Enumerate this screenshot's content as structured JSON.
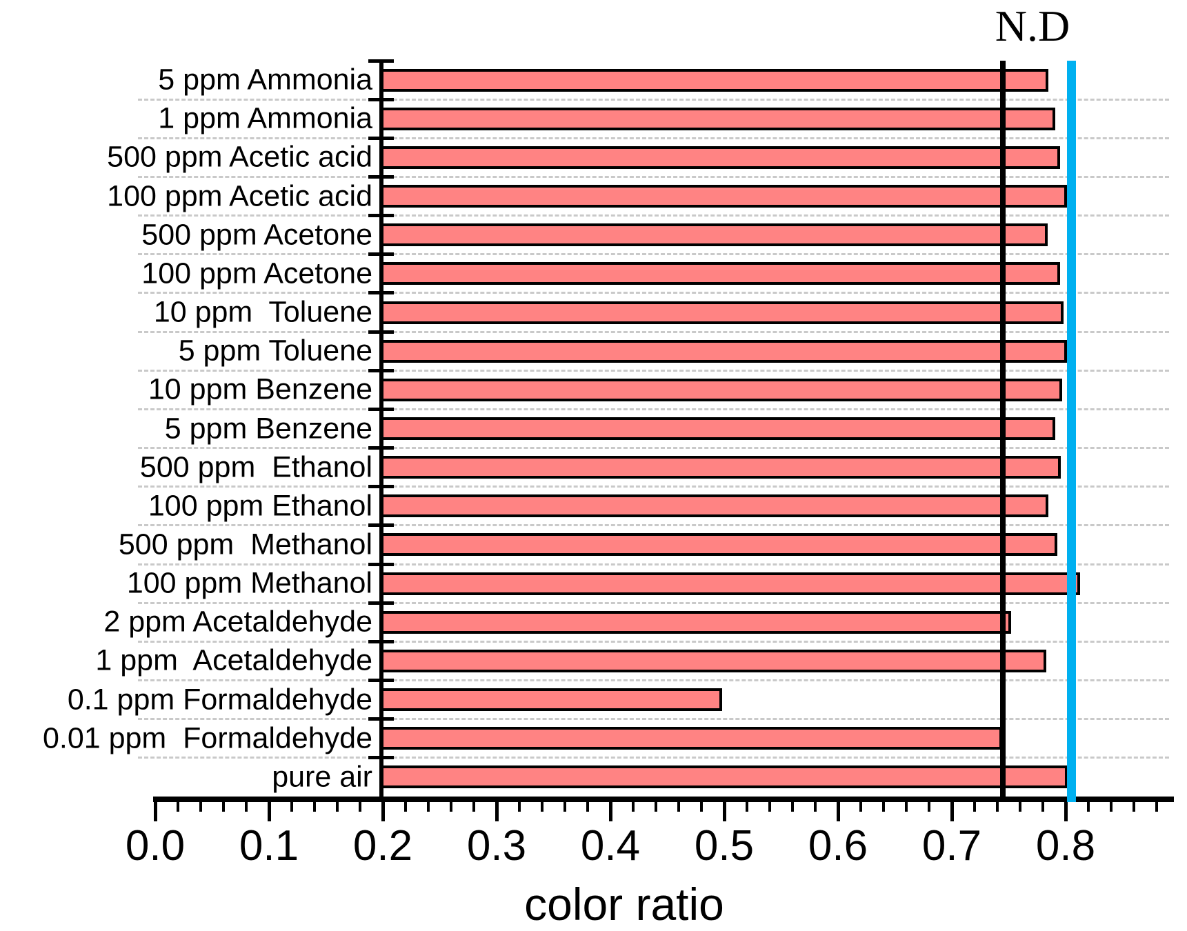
{
  "chart_data": {
    "type": "bar",
    "orientation": "horizontal",
    "title": "",
    "xlabel": "color ratio",
    "nd_label": "N.D",
    "categories": [
      "5 ppm Ammonia",
      "1 ppm Ammonia",
      "500 ppm Acetic acid",
      "100 ppm Acetic acid",
      "500 ppm Acetone",
      "100 ppm Acetone",
      "10 ppm  Toluene",
      "5 ppm Toluene",
      "10 ppm Benzene",
      "5 ppm Benzene",
      "500 ppm  Ethanol",
      "100 ppm Ethanol",
      "500 ppm  Methanol",
      "100 ppm Methanol",
      "2 ppm Acetaldehyde",
      "1 ppm  Acetaldehyde",
      "0.1 ppm Formaldehyde",
      "0.01 ppm  Formaldehyde",
      "pure air"
    ],
    "values": [
      0.785,
      0.791,
      0.795,
      0.801,
      0.784,
      0.795,
      0.798,
      0.801,
      0.797,
      0.791,
      0.796,
      0.785,
      0.793,
      0.813,
      0.752,
      0.783,
      0.498,
      0.744,
      0.802
    ],
    "x_tick_labels": [
      "0.0",
      "0.1",
      "0.2",
      "0.3",
      "0.4",
      "0.5",
      "0.6",
      "0.7",
      "0.8"
    ],
    "x_tick_values": [
      0.0,
      0.1,
      0.2,
      0.3,
      0.4,
      0.5,
      0.6,
      0.7,
      0.8
    ],
    "xlim": [
      0.0,
      0.88
    ],
    "bar_baseline": 0.2,
    "minor_tick_step": 0.02,
    "grid": true,
    "bar_color": "#FF8383",
    "bar_border_color": "#000000",
    "gridline_color": "#C9C9C9",
    "reference_lines": [
      {
        "name": "threshold",
        "value": 0.745,
        "color": "#000000"
      },
      {
        "name": "not-detected",
        "value": 0.805,
        "color": "#00B0F0",
        "label": "N.D"
      }
    ]
  }
}
